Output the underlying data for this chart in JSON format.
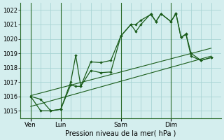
{
  "xlabel": "Pression niveau de la mer( hPa )",
  "bg_color": "#d4eeee",
  "grid_color": "#a8d4d4",
  "line_color": "#1a5c1a",
  "vline_color": "#2a6b2a",
  "ylim": [
    1014.5,
    1022.5
  ],
  "yticks": [
    1015,
    1016,
    1017,
    1018,
    1019,
    1020,
    1021,
    1022
  ],
  "xlim": [
    0,
    20
  ],
  "xtick_positions": [
    1,
    4,
    10,
    15
  ],
  "xtick_labels": [
    "Ven",
    "Lun",
    "Sam",
    "Dim"
  ],
  "vline_positions": [
    1,
    4,
    10,
    15
  ],
  "num_xgrid": 20,
  "series1": [
    [
      1,
      1016.0
    ],
    [
      2,
      1015.8
    ],
    [
      3,
      1015.0
    ],
    [
      4,
      1015.1
    ],
    [
      5,
      1017.0
    ],
    [
      5.5,
      1018.85
    ],
    [
      6,
      1016.7
    ],
    [
      7,
      1018.4
    ],
    [
      8,
      1018.35
    ],
    [
      9,
      1018.5
    ],
    [
      10,
      1020.2
    ],
    [
      11,
      1021.0
    ],
    [
      11.5,
      1021.0
    ],
    [
      12,
      1021.3
    ],
    [
      13,
      1021.7
    ],
    [
      13.5,
      1021.2
    ],
    [
      14,
      1021.75
    ],
    [
      15,
      1021.2
    ],
    [
      15.5,
      1021.75
    ],
    [
      16,
      1020.1
    ],
    [
      16.5,
      1020.35
    ],
    [
      17,
      1019.0
    ],
    [
      18,
      1018.5
    ],
    [
      19,
      1018.7
    ]
  ],
  "series2": [
    [
      1,
      1016.0
    ],
    [
      2,
      1015.0
    ],
    [
      3,
      1015.0
    ],
    [
      4,
      1015.1
    ],
    [
      5,
      1016.8
    ],
    [
      5.5,
      1016.7
    ],
    [
      6,
      1016.7
    ],
    [
      7,
      1017.8
    ],
    [
      8,
      1017.65
    ],
    [
      9,
      1017.7
    ],
    [
      10,
      1020.2
    ],
    [
      11,
      1021.0
    ],
    [
      11.5,
      1020.5
    ],
    [
      12,
      1021.0
    ],
    [
      13,
      1021.75
    ],
    [
      13.5,
      1021.2
    ],
    [
      14,
      1021.75
    ],
    [
      15,
      1021.2
    ],
    [
      15.5,
      1021.8
    ],
    [
      16,
      1020.1
    ],
    [
      16.5,
      1020.3
    ],
    [
      17,
      1018.8
    ],
    [
      18,
      1018.5
    ],
    [
      19,
      1018.7
    ]
  ],
  "trend_line": [
    [
      1,
      1015.3
    ],
    [
      19,
      1018.8
    ]
  ],
  "trend_line2": [
    [
      1,
      1016.05
    ],
    [
      19,
      1019.35
    ]
  ]
}
